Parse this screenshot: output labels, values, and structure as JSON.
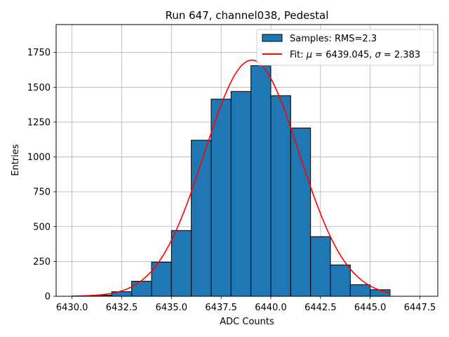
{
  "chart_data": {
    "type": "bar",
    "title": "Run 647, channel038, Pedestal",
    "xlabel": "ADC Counts",
    "ylabel": "Entries",
    "xlim": [
      6429.2,
      6448.4
    ],
    "ylim": [
      0,
      1950
    ],
    "grid": true,
    "legend_position": "top-right",
    "x_ticks": [
      6430.0,
      6432.5,
      6435.0,
      6437.5,
      6440.0,
      6442.5,
      6445.0,
      6447.5
    ],
    "x_tick_labels": [
      "6430.0",
      "6432.5",
      "6435.0",
      "6437.5",
      "6440.0",
      "6442.5",
      "6445.0",
      "6447.5"
    ],
    "y_ticks": [
      0,
      250,
      500,
      750,
      1000,
      1250,
      1500,
      1750
    ],
    "y_tick_labels": [
      "0",
      "250",
      "500",
      "750",
      "1000",
      "1250",
      "1500",
      "1750"
    ],
    "histogram": {
      "name": "Samples: RMS=2.3",
      "color": "#1f77b4",
      "edge_color": "#000000",
      "bins": [
        {
          "x0": 6431,
          "x1": 6432,
          "value": 8
        },
        {
          "x0": 6432,
          "x1": 6433,
          "value": 33
        },
        {
          "x0": 6433,
          "x1": 6434,
          "value": 108
        },
        {
          "x0": 6434,
          "x1": 6435,
          "value": 245
        },
        {
          "x0": 6435,
          "x1": 6436,
          "value": 472
        },
        {
          "x0": 6436,
          "x1": 6437,
          "value": 1120
        },
        {
          "x0": 6437,
          "x1": 6438,
          "value": 1415
        },
        {
          "x0": 6438,
          "x1": 6439,
          "value": 1470
        },
        {
          "x0": 6439,
          "x1": 6440,
          "value": 1655
        },
        {
          "x0": 6440,
          "x1": 6441,
          "value": 1440
        },
        {
          "x0": 6441,
          "x1": 6442,
          "value": 1208
        },
        {
          "x0": 6442,
          "x1": 6443,
          "value": 428
        },
        {
          "x0": 6443,
          "x1": 6444,
          "value": 225
        },
        {
          "x0": 6444,
          "x1": 6445,
          "value": 83
        },
        {
          "x0": 6445,
          "x1": 6446,
          "value": 47
        }
      ]
    },
    "fit": {
      "name_prefix": "Fit: ",
      "mu_symbol": "μ",
      "mu_text": " = 6439.045, ",
      "sigma_symbol": "σ",
      "sigma_text": " = 2.383",
      "color": "#ff0000",
      "mu": 6439.045,
      "sigma": 2.383,
      "amplitude": 1695,
      "x_range": [
        6430.0,
        6446.0
      ]
    }
  }
}
